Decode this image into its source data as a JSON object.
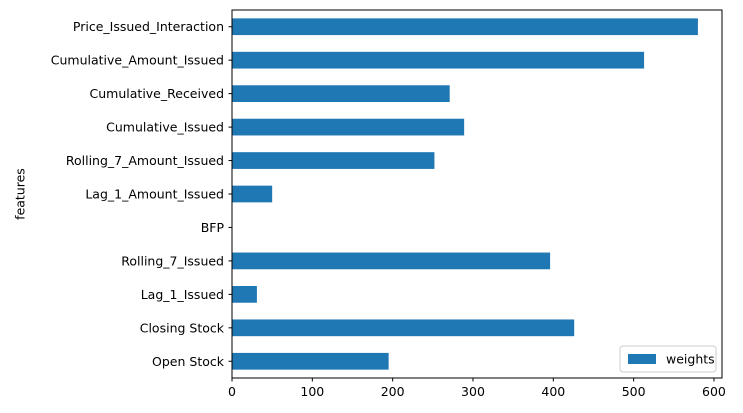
{
  "chart_data": {
    "type": "bar",
    "orientation": "horizontal",
    "categories": [
      "Open Stock",
      "Closing Stock",
      "Lag_1_Issued",
      "Rolling_7_Issued",
      "BFP",
      "Lag_1_Amount_Issued",
      "Rolling_7_Amount_Issued",
      "Cumulative_Issued",
      "Cumulative_Received",
      "Cumulative_Amount_Issued",
      "Price_Issued_Interaction"
    ],
    "series": [
      {
        "name": "weights",
        "values": [
          195,
          426,
          31,
          396,
          0,
          50,
          252,
          289,
          271,
          513,
          580
        ],
        "color": "#1f77b4"
      }
    ],
    "xlabel": "",
    "ylabel": "features",
    "xlim": [
      0,
      610
    ],
    "xticks": [
      0,
      100,
      200,
      300,
      400,
      500,
      600
    ],
    "grid": false,
    "legend_position": "bottom-right"
  }
}
